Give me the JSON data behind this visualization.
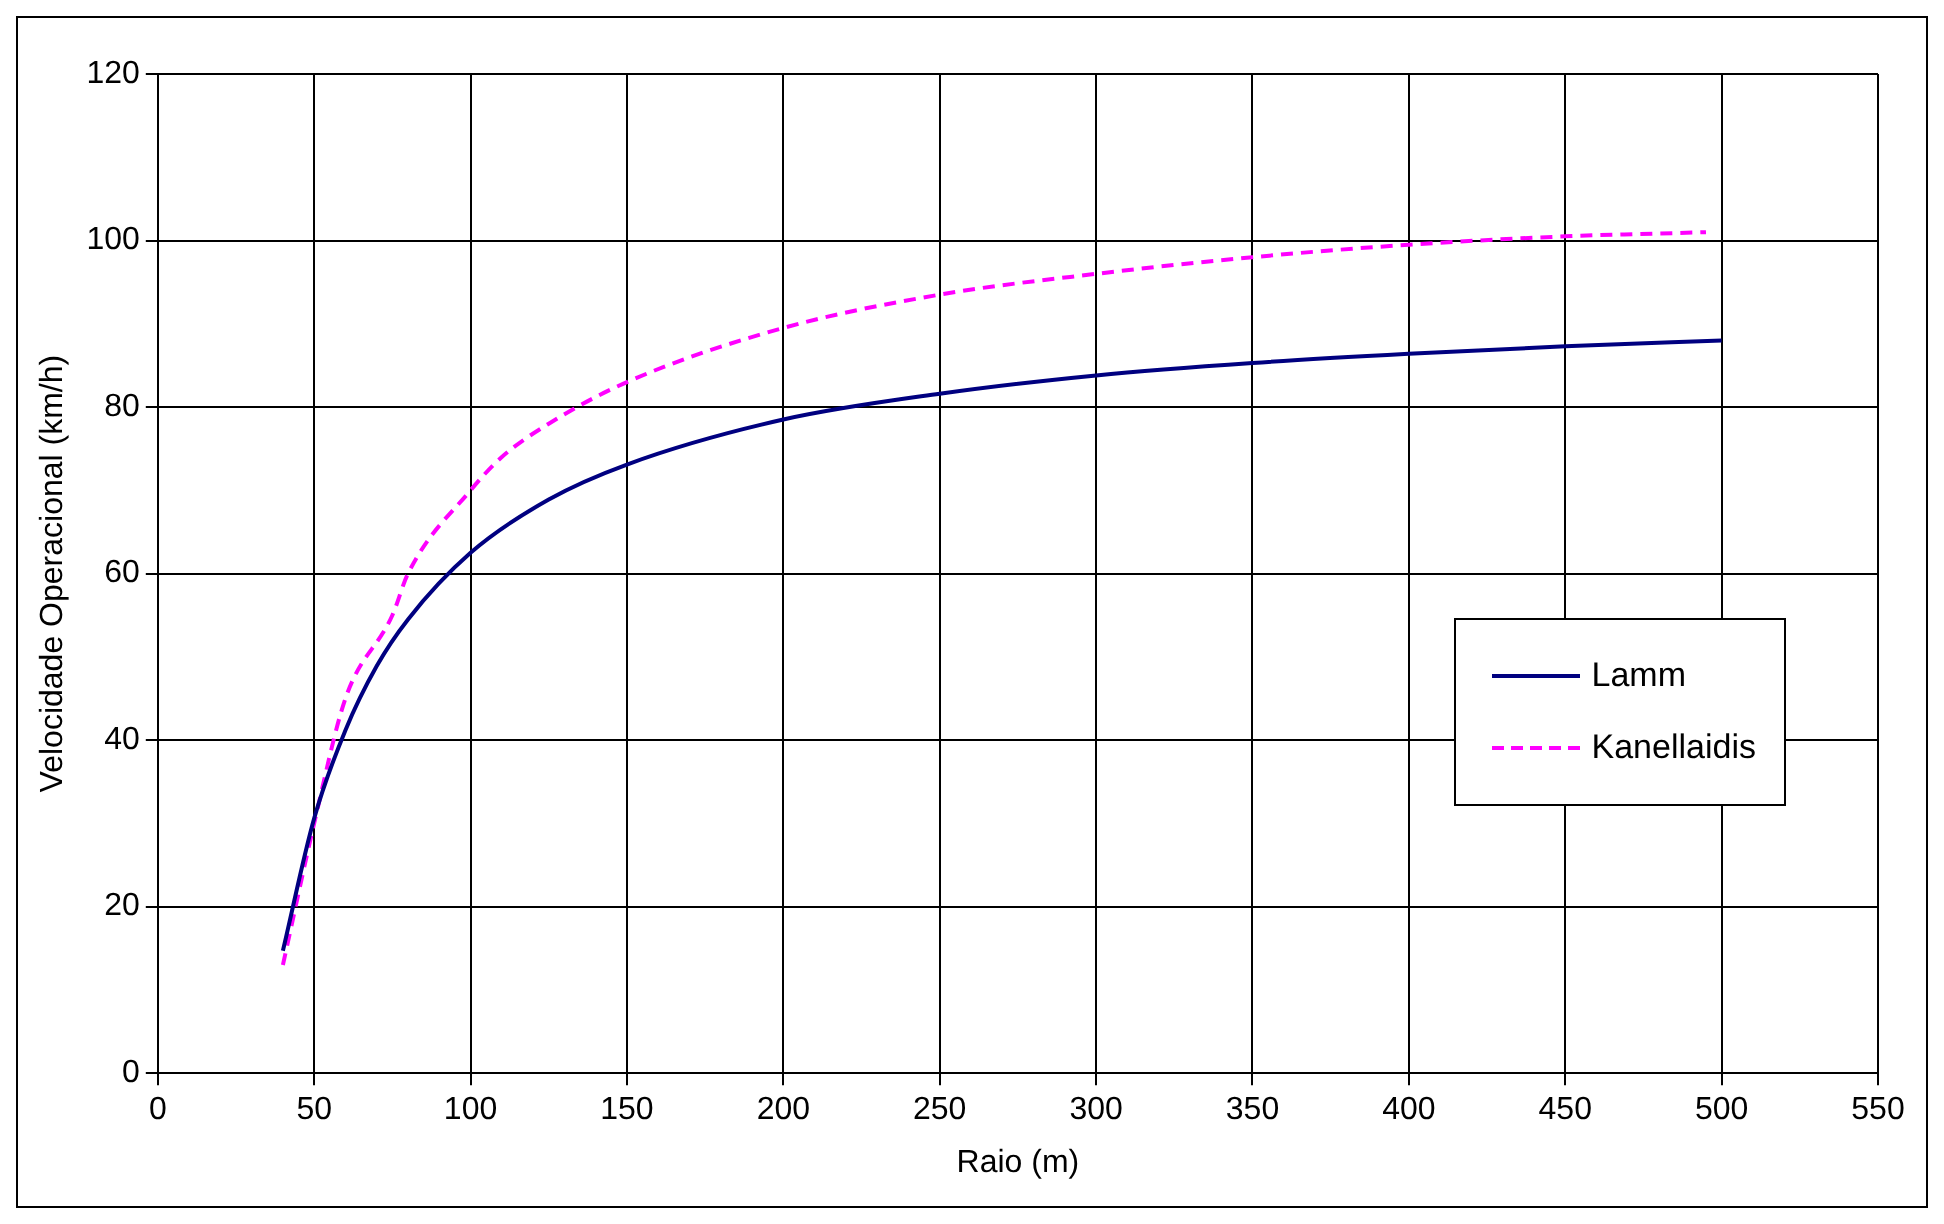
{
  "chart_data": {
    "type": "line",
    "xlabel": "Raio (m)",
    "ylabel": "Velocidade Operacional (km/h)",
    "xlim": [
      0,
      550
    ],
    "xticks": [
      0,
      50,
      100,
      150,
      200,
      250,
      300,
      350,
      400,
      450,
      500,
      550
    ],
    "ylim": [
      0,
      120
    ],
    "yticks": [
      0,
      20,
      40,
      60,
      80,
      100,
      120
    ],
    "grid": true,
    "legend": "right",
    "marker": "none",
    "series": [
      {
        "name": "Lamm",
        "color": "#000080",
        "line_style": "solid",
        "x": [
          40,
          50,
          60,
          70,
          80,
          100,
          125,
          150,
          200,
          250,
          300,
          350,
          400,
          450,
          500
        ],
        "values": [
          14.7,
          30.6,
          41.2,
          48.9,
          54.5,
          62.5,
          68.9,
          73.1,
          78.5,
          81.6,
          83.8,
          85.3,
          86.4,
          87.3,
          88.0
        ]
      },
      {
        "name": "Kanellaidis",
        "color": "#ff00ff",
        "line_style": "dashed",
        "x": [
          40,
          50,
          60,
          75,
          80,
          100,
          110,
          125,
          150,
          200,
          250,
          300,
          350,
          400,
          450,
          495
        ],
        "values": [
          13,
          30,
          45,
          55,
          60,
          70,
          74,
          78,
          83,
          89.5,
          93.5,
          96,
          98,
          99.5,
          100.5,
          101
        ]
      }
    ]
  }
}
